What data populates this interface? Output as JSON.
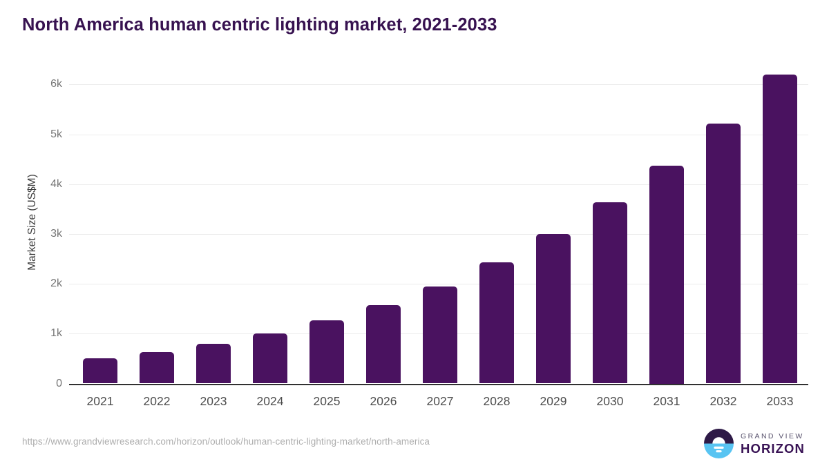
{
  "chart_data": {
    "type": "bar",
    "title": "North America human centric lighting market, 2021-2033",
    "categories": [
      "2021",
      "2022",
      "2023",
      "2024",
      "2025",
      "2026",
      "2027",
      "2028",
      "2029",
      "2030",
      "2031",
      "2032",
      "2033"
    ],
    "values": [
      500,
      630,
      790,
      1000,
      1265,
      1570,
      1950,
      2430,
      3000,
      3630,
      4375,
      5220,
      6200
    ],
    "xlabel": "",
    "ylabel": "Market Size (US$M)",
    "ylim": [
      0,
      6450
    ],
    "ytick_values": [
      0,
      1000,
      2000,
      3000,
      4000,
      5000,
      6000
    ],
    "ytick_labels": [
      "0",
      "1k",
      "2k",
      "3k",
      "4k",
      "5k",
      "6k"
    ],
    "grid": true,
    "legend": false,
    "bar_color": "#4a1260"
  },
  "footer": {
    "source_url": "https://www.grandviewresearch.com/horizon/outlook/human-centric-lighting-market/north-america",
    "logo": {
      "brand_line1": "GRAND VIEW",
      "brand_line2": "HORIZON"
    }
  },
  "colors": {
    "title_text": "#371250",
    "bar_fill": "#4a1260",
    "gridline": "#ececec",
    "axis_line": "#313131",
    "ytick_text": "#767676",
    "xtick_text": "#4e4e4e",
    "ylabel_text": "#3d3d3d",
    "url_text": "#adadad",
    "logo_dark_half": "#2e1a47",
    "logo_blue_half": "#58c4f2",
    "logo_brand_gray": "#56506b",
    "logo_brand_purple": "#391355"
  }
}
